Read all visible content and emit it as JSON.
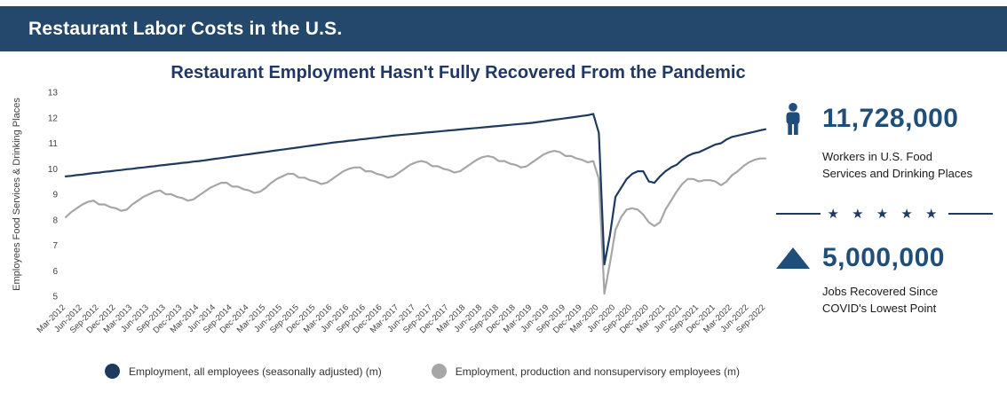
{
  "header": {
    "title": "Restaurant Labor Costs in the U.S."
  },
  "colors": {
    "header_bg": "#23486b",
    "accent": "#1f4e79",
    "title": "#1f3864",
    "line_all_employees": "#1f3a5f",
    "line_production": "#a6a6a6"
  },
  "chart_data": {
    "type": "line",
    "title": "Restaurant Employment Hasn't Fully Recovered From the Pandemic",
    "xlabel": "",
    "ylabel": "Employees Food Services & Drinking Places",
    "ylim": [
      5,
      13
    ],
    "yticks": [
      5,
      6,
      7,
      8,
      9,
      10,
      11,
      12,
      13
    ],
    "grid": false,
    "legend_position": "bottom",
    "x_start_month": "Mar-2012",
    "x_frequency": "monthly",
    "x_tick_every_months": 3,
    "x_tick_labels": [
      "Mar-2012",
      "Jun-2012",
      "Sep-2012",
      "Dec-2012",
      "Mar-2013",
      "Jun-2013",
      "Sep-2013",
      "Dec-2013",
      "Mar-2014",
      "Jun-2014",
      "Sep-2014",
      "Dec-2014",
      "Mar-2015",
      "Jun-2015",
      "Sep-2015",
      "Dec-2015",
      "Mar-2016",
      "Jun-2016",
      "Sep-2016",
      "Dec-2016",
      "Mar-2017",
      "Jun-2017",
      "Sep-2017",
      "Dec-2017",
      "Mar-2018",
      "Jun-2018",
      "Sep-2018",
      "Dec-2018",
      "Mar-2019",
      "Jun-2019",
      "Sep-2019",
      "Dec-2019",
      "Mar-2020",
      "Jun-2020",
      "Sep-2020",
      "Dec-2020",
      "Mar-2021",
      "Jun-2021",
      "Sep-2021",
      "Dec-2021",
      "Mar-2022",
      "Jun-2022",
      "Sep-2022"
    ],
    "series": [
      {
        "name": "Employment, all employees (seasonally adjusted) (m)",
        "color": "#1f3a5f",
        "values": [
          9.7,
          9.72,
          9.75,
          9.77,
          9.8,
          9.83,
          9.85,
          9.88,
          9.9,
          9.93,
          9.95,
          9.98,
          10.0,
          10.03,
          10.05,
          10.08,
          10.1,
          10.13,
          10.15,
          10.18,
          10.2,
          10.23,
          10.25,
          10.28,
          10.3,
          10.33,
          10.36,
          10.39,
          10.42,
          10.45,
          10.48,
          10.51,
          10.54,
          10.57,
          10.6,
          10.63,
          10.66,
          10.69,
          10.72,
          10.75,
          10.78,
          10.81,
          10.84,
          10.87,
          10.9,
          10.93,
          10.96,
          10.99,
          11.02,
          11.05,
          11.07,
          11.1,
          11.12,
          11.15,
          11.17,
          11.2,
          11.22,
          11.25,
          11.27,
          11.3,
          11.32,
          11.34,
          11.36,
          11.38,
          11.4,
          11.42,
          11.44,
          11.46,
          11.48,
          11.5,
          11.52,
          11.54,
          11.56,
          11.58,
          11.6,
          11.62,
          11.64,
          11.66,
          11.68,
          11.7,
          11.72,
          11.74,
          11.76,
          11.78,
          11.8,
          11.83,
          11.86,
          11.89,
          11.92,
          11.95,
          11.98,
          12.01,
          12.04,
          12.07,
          12.1,
          12.15,
          11.4,
          6.25,
          7.4,
          8.9,
          9.25,
          9.6,
          9.8,
          9.9,
          9.9,
          9.5,
          9.45,
          9.7,
          9.9,
          10.05,
          10.15,
          10.35,
          10.5,
          10.6,
          10.65,
          10.75,
          10.85,
          10.95,
          11.0,
          11.15,
          11.25,
          11.3,
          11.35,
          11.4,
          11.45,
          11.5,
          11.55
        ]
      },
      {
        "name": "Employment, production and nonsupervisory employees (m)",
        "color": "#a6a6a6",
        "values": [
          8.1,
          8.3,
          8.45,
          8.6,
          8.7,
          8.75,
          8.6,
          8.6,
          8.5,
          8.45,
          8.35,
          8.4,
          8.6,
          8.75,
          8.9,
          9.0,
          9.1,
          9.15,
          9.0,
          9.0,
          8.9,
          8.85,
          8.75,
          8.8,
          8.95,
          9.1,
          9.25,
          9.35,
          9.45,
          9.45,
          9.3,
          9.3,
          9.2,
          9.15,
          9.05,
          9.1,
          9.25,
          9.45,
          9.6,
          9.7,
          9.8,
          9.8,
          9.65,
          9.65,
          9.55,
          9.5,
          9.4,
          9.45,
          9.6,
          9.75,
          9.9,
          10.0,
          10.05,
          10.05,
          9.9,
          9.9,
          9.8,
          9.75,
          9.65,
          9.7,
          9.85,
          10.0,
          10.15,
          10.25,
          10.3,
          10.25,
          10.1,
          10.1,
          10.0,
          9.95,
          9.85,
          9.9,
          10.05,
          10.2,
          10.35,
          10.45,
          10.5,
          10.45,
          10.3,
          10.3,
          10.2,
          10.15,
          10.05,
          10.1,
          10.25,
          10.4,
          10.55,
          10.65,
          10.7,
          10.65,
          10.5,
          10.5,
          10.4,
          10.35,
          10.25,
          10.3,
          9.6,
          5.1,
          6.3,
          7.6,
          8.1,
          8.4,
          8.45,
          8.4,
          8.2,
          7.9,
          7.75,
          7.9,
          8.4,
          8.75,
          9.1,
          9.4,
          9.6,
          9.6,
          9.5,
          9.55,
          9.55,
          9.5,
          9.35,
          9.5,
          9.75,
          9.9,
          10.1,
          10.25,
          10.35,
          10.4,
          10.4
        ]
      }
    ]
  },
  "stats": [
    {
      "icon": "person-icon",
      "value": "11,728,000",
      "caption": "Workers in U.S. Food Services and Drinking Places"
    },
    {
      "icon": "triangle-up-icon",
      "value": "5,000,000",
      "caption": "Jobs Recovered Since COVID's Lowest Point"
    }
  ],
  "divider": {
    "stars": "★ ★ ★ ★ ★"
  }
}
